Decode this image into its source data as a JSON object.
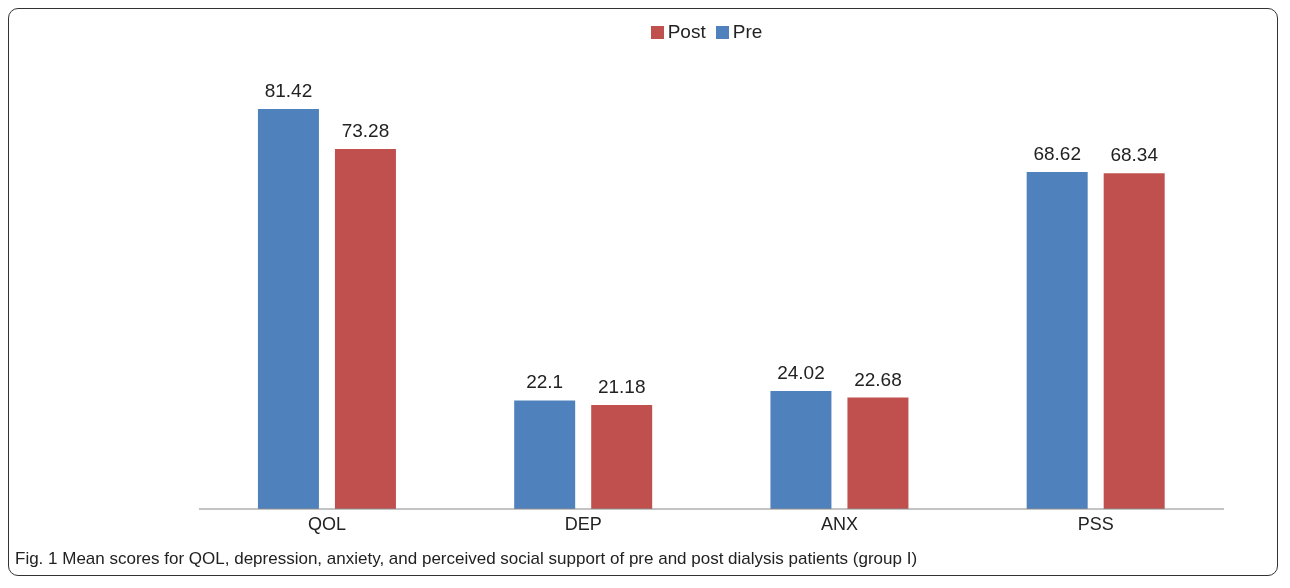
{
  "chart_data": {
    "type": "bar",
    "categories": [
      "QOL",
      "DEP",
      "ANX",
      "PSS"
    ],
    "series": [
      {
        "name": "Pre",
        "color": "#4f81bd",
        "values": [
          81.42,
          22.1,
          24.02,
          68.62
        ]
      },
      {
        "name": "Post",
        "color": "#c0504d",
        "values": [
          73.28,
          21.18,
          22.68,
          68.34
        ]
      }
    ],
    "data_labels": true,
    "legend": "top",
    "grid": false,
    "annotations": [
      "Fig. 1 Mean scores for QOL, depression, anxiety, and perceived social support of pre and post dialysis patients (group I)"
    ]
  }
}
